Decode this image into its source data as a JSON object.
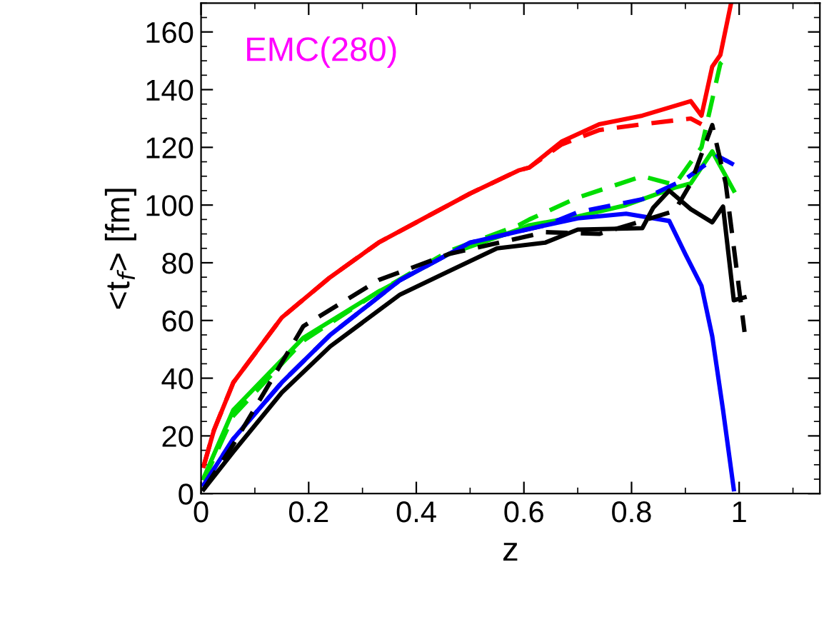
{
  "chart_data": {
    "type": "line",
    "xlabel": "z",
    "ylabel": "<t$_{f}$> [fm]",
    "annotations": [
      "EMC(280)"
    ],
    "xlim": [
      0,
      1.15
    ],
    "ylim": [
      0,
      170
    ],
    "xticks": [
      0,
      0.2,
      0.4,
      0.6,
      0.8,
      1
    ],
    "yticks": [
      0,
      20,
      40,
      60,
      80,
      100,
      120,
      140,
      160
    ],
    "grid": false,
    "legend": false,
    "marker": "none",
    "series": [
      {
        "color": "#ff0000",
        "line_style": "solid",
        "x": [
          0.005,
          0.024,
          0.06,
          0.15,
          0.24,
          0.33,
          0.42,
          0.5,
          0.59,
          0.61,
          0.67,
          0.74,
          0.82,
          0.91,
          0.93,
          0.95,
          0.965,
          0.985
        ],
        "values": [
          9.6,
          22,
          38.5,
          61,
          75,
          87,
          96,
          104,
          112,
          113,
          122,
          128,
          131,
          136,
          131,
          148,
          152,
          170
        ]
      },
      {
        "color": "#ff0000",
        "line_style": "dashed",
        "x": [
          0.005,
          0.024,
          0.06,
          0.15,
          0.24,
          0.33,
          0.42,
          0.5,
          0.59,
          0.61,
          0.67,
          0.74,
          0.82,
          0.91,
          0.93
        ],
        "values": [
          9.6,
          22,
          38.5,
          61,
          75,
          87,
          96,
          104,
          112,
          113,
          121,
          126,
          128,
          130,
          128
        ]
      },
      {
        "color": "#00dd00",
        "line_style": "solid",
        "x": [
          0.005,
          0.06,
          0.19,
          0.33,
          0.46,
          0.59,
          0.61,
          0.7,
          0.79,
          0.88,
          0.91,
          0.95,
          0.99
        ],
        "values": [
          5.5,
          29,
          54,
          70,
          83,
          91.5,
          93,
          96,
          100,
          106,
          107.5,
          118.6,
          105
        ]
      },
      {
        "color": "#00dd00",
        "line_style": "dashed",
        "x": [
          0.005,
          0.06,
          0.19,
          0.33,
          0.46,
          0.59,
          0.61,
          0.7,
          0.82,
          0.88,
          0.93,
          0.965,
          0.97
        ],
        "values": [
          4.5,
          27,
          53,
          70,
          84,
          93,
          95,
          102.6,
          110,
          107,
          120,
          149,
          150
        ]
      },
      {
        "color": "#0000ff",
        "line_style": "solid",
        "x": [
          0.005,
          0.06,
          0.15,
          0.24,
          0.37,
          0.5,
          0.64,
          0.7,
          0.79,
          0.87,
          0.9,
          0.93,
          0.95,
          0.97,
          0.99
        ],
        "values": [
          3,
          19,
          38.5,
          55,
          74,
          87,
          93,
          95.4,
          97,
          94.5,
          83,
          72,
          54.5,
          29,
          1.5
        ]
      },
      {
        "color": "#0000ff",
        "line_style": "dashed",
        "x": [
          0.005,
          0.06,
          0.15,
          0.24,
          0.37,
          0.5,
          0.64,
          0.7,
          0.82,
          0.9,
          0.96,
          0.99
        ],
        "values": [
          3,
          19,
          38.5,
          55,
          74,
          87,
          93,
          97.5,
          102,
          109,
          117,
          114
        ]
      },
      {
        "color": "#000000",
        "line_style": "solid",
        "x": [
          0.005,
          0.06,
          0.15,
          0.24,
          0.37,
          0.46,
          0.55,
          0.64,
          0.7,
          0.82,
          0.84,
          0.87,
          0.91,
          0.95,
          0.97,
          0.99,
          1.01
        ],
        "values": [
          1.5,
          14.5,
          35,
          51,
          69,
          77,
          85,
          87,
          91.5,
          92,
          99,
          105,
          98.6,
          94,
          99.5,
          67,
          68
        ]
      },
      {
        "color": "#000000",
        "line_style": "dashed",
        "x": [
          0.005,
          0.06,
          0.19,
          0.33,
          0.46,
          0.64,
          0.74,
          0.82,
          0.88,
          0.91,
          0.95,
          0.975,
          1.01
        ],
        "values": [
          1.5,
          17,
          58,
          74,
          83,
          90.6,
          90,
          94.5,
          98,
          107.5,
          127.7,
          107.5,
          56
        ]
      }
    ]
  }
}
